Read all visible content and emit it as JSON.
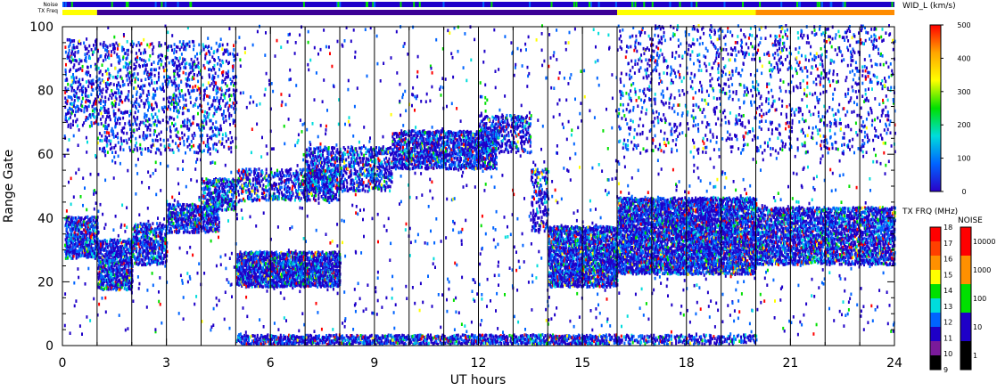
{
  "chart_data": {
    "type": "heatmap",
    "xlabel": "UT hours",
    "ylabel": "Range Gate",
    "xlim": [
      0,
      24
    ],
    "ylim": [
      0,
      100
    ],
    "x_ticks": [
      "0",
      "3",
      "6",
      "9",
      "12",
      "15",
      "18",
      "21",
      "24"
    ],
    "y_ticks": [
      "0",
      "20",
      "40",
      "60",
      "80",
      "100"
    ],
    "hour_lines": [
      1,
      2,
      3,
      4,
      5,
      6,
      7,
      8,
      9,
      10,
      11,
      12,
      13,
      14,
      15,
      16,
      17,
      18,
      19,
      20,
      21,
      22,
      23
    ],
    "status_bars": {
      "noise_label": "Noise",
      "txfreq_label": "TX Freq",
      "txfreq_segments": [
        {
          "start": 0,
          "end": 1,
          "color": "#ffff00"
        },
        {
          "start": 1,
          "end": 16,
          "color": "#3c0096"
        },
        {
          "start": 16,
          "end": 20,
          "color": "#ffff00"
        },
        {
          "start": 20,
          "end": 24,
          "color": "#ff8c00"
        }
      ]
    },
    "echo_regions": [
      {
        "x0": 0.05,
        "x1": 1.0,
        "y0": 27,
        "y1": 40,
        "density": 0.85
      },
      {
        "x0": 1.0,
        "x1": 2.0,
        "y0": 17,
        "y1": 33,
        "density": 0.85
      },
      {
        "x0": 2.0,
        "x1": 3.0,
        "y0": 25,
        "y1": 38,
        "density": 0.7
      },
      {
        "x0": 3.0,
        "x1": 4.5,
        "y0": 35,
        "y1": 44,
        "density": 0.75
      },
      {
        "x0": 4.0,
        "x1": 5.0,
        "y0": 42,
        "y1": 52,
        "density": 0.6
      },
      {
        "x0": 5.0,
        "x1": 8.0,
        "y0": 45,
        "y1": 55,
        "density": 0.45
      },
      {
        "x0": 5.0,
        "x1": 8.0,
        "y0": 18,
        "y1": 29,
        "density": 0.95
      },
      {
        "x0": 7.0,
        "x1": 9.5,
        "y0": 48,
        "y1": 62,
        "density": 0.5
      },
      {
        "x0": 9.5,
        "x1": 12.5,
        "y0": 55,
        "y1": 67,
        "density": 0.75
      },
      {
        "x0": 12.0,
        "x1": 13.5,
        "y0": 60,
        "y1": 72,
        "density": 0.4
      },
      {
        "x0": 14.0,
        "x1": 16.0,
        "y0": 18,
        "y1": 37,
        "density": 0.9
      },
      {
        "x0": 13.5,
        "x1": 14.0,
        "y0": 35,
        "y1": 55,
        "density": 0.4
      },
      {
        "x0": 16.0,
        "x1": 20.0,
        "y0": 22,
        "y1": 46,
        "density": 0.9
      },
      {
        "x0": 20.0,
        "x1": 24.0,
        "y0": 25,
        "y1": 43,
        "density": 0.75
      },
      {
        "x0": 5.0,
        "x1": 16.0,
        "y0": 0,
        "y1": 3,
        "density": 0.8
      },
      {
        "x0": 16.0,
        "x1": 20.0,
        "y0": 0,
        "y1": 3,
        "density": 0.5
      },
      {
        "x0": 0.05,
        "x1": 1.0,
        "y0": 68,
        "y1": 96,
        "density": 0.25
      },
      {
        "x0": 1.0,
        "x1": 5.0,
        "y0": 60,
        "y1": 95,
        "density": 0.2
      },
      {
        "x0": 16.0,
        "x1": 24.0,
        "y0": 60,
        "y1": 100,
        "density": 0.1
      },
      {
        "x0": 0.0,
        "x1": 24.0,
        "y0": 3,
        "y1": 100,
        "density": 0.02
      }
    ],
    "wid_scale": {
      "title": "WID_L (km/s)",
      "ticks": [
        "0",
        "100",
        "200",
        "300",
        "400",
        "500"
      ],
      "stops": [
        "#2a00c8",
        "#0064ff",
        "#00dcdc",
        "#00e000",
        "#ffff00",
        "#ffa500",
        "#ff0000"
      ]
    },
    "txfreq_scale": {
      "title": "TX FRQ (MHz)",
      "ticks": [
        "9",
        "10",
        "11",
        "12",
        "13",
        "14",
        "15",
        "16",
        "17",
        "18"
      ],
      "colors": [
        "#000000",
        "#7a1a9a",
        "#1e00c8",
        "#0064ff",
        "#00dcdc",
        "#00e000",
        "#ffff00",
        "#ff9000",
        "#ff4000",
        "#ff0000"
      ]
    },
    "noise_scale": {
      "title": "NOISE",
      "ticks": [
        "1",
        "10",
        "100",
        "1000",
        "10000"
      ],
      "colors": [
        "#000000",
        "#1e00c8",
        "#00e000",
        "#ff9000",
        "#ff0000"
      ]
    }
  }
}
